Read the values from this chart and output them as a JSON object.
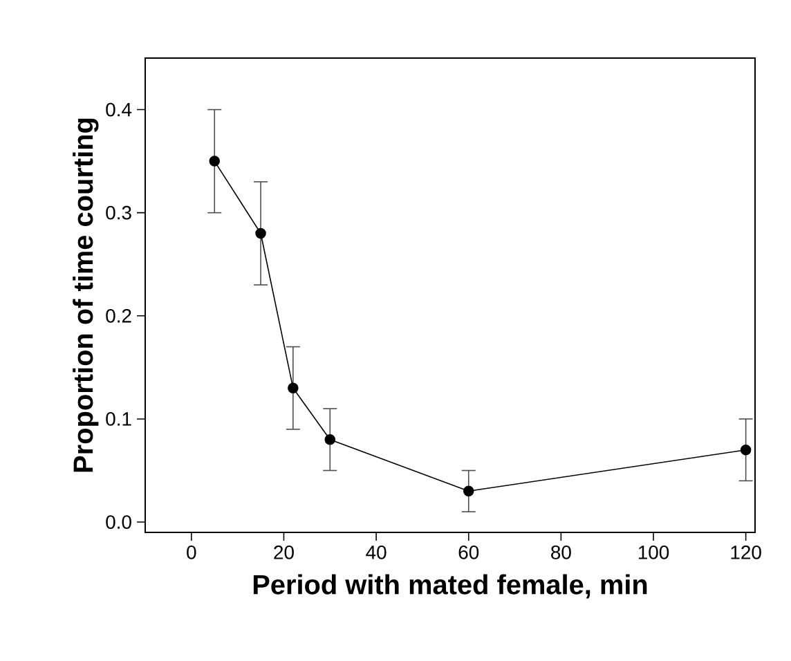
{
  "chart_data": {
    "type": "line",
    "xlabel": "Period with mated female, min",
    "ylabel": "Proportion of time courting",
    "x": [
      5,
      15,
      22,
      30,
      60,
      120
    ],
    "values": [
      0.35,
      0.28,
      0.13,
      0.08,
      0.03,
      0.07
    ],
    "errors": [
      [
        0.3,
        0.4
      ],
      [
        0.23,
        0.33
      ],
      [
        0.09,
        0.17
      ],
      [
        0.05,
        0.11
      ],
      [
        0.01,
        0.05
      ],
      [
        0.04,
        0.1
      ]
    ],
    "color": "#000000",
    "marker": "circle",
    "line_style": "solid",
    "xlim": [
      -10,
      122
    ],
    "xticks": [
      0,
      20,
      40,
      60,
      80,
      100,
      120
    ],
    "ylim": [
      -0.01,
      0.45
    ],
    "yticks": [
      {
        "value": 0,
        "label": "0.0"
      },
      0.1,
      0.2,
      0.3,
      0.4
    ]
  }
}
